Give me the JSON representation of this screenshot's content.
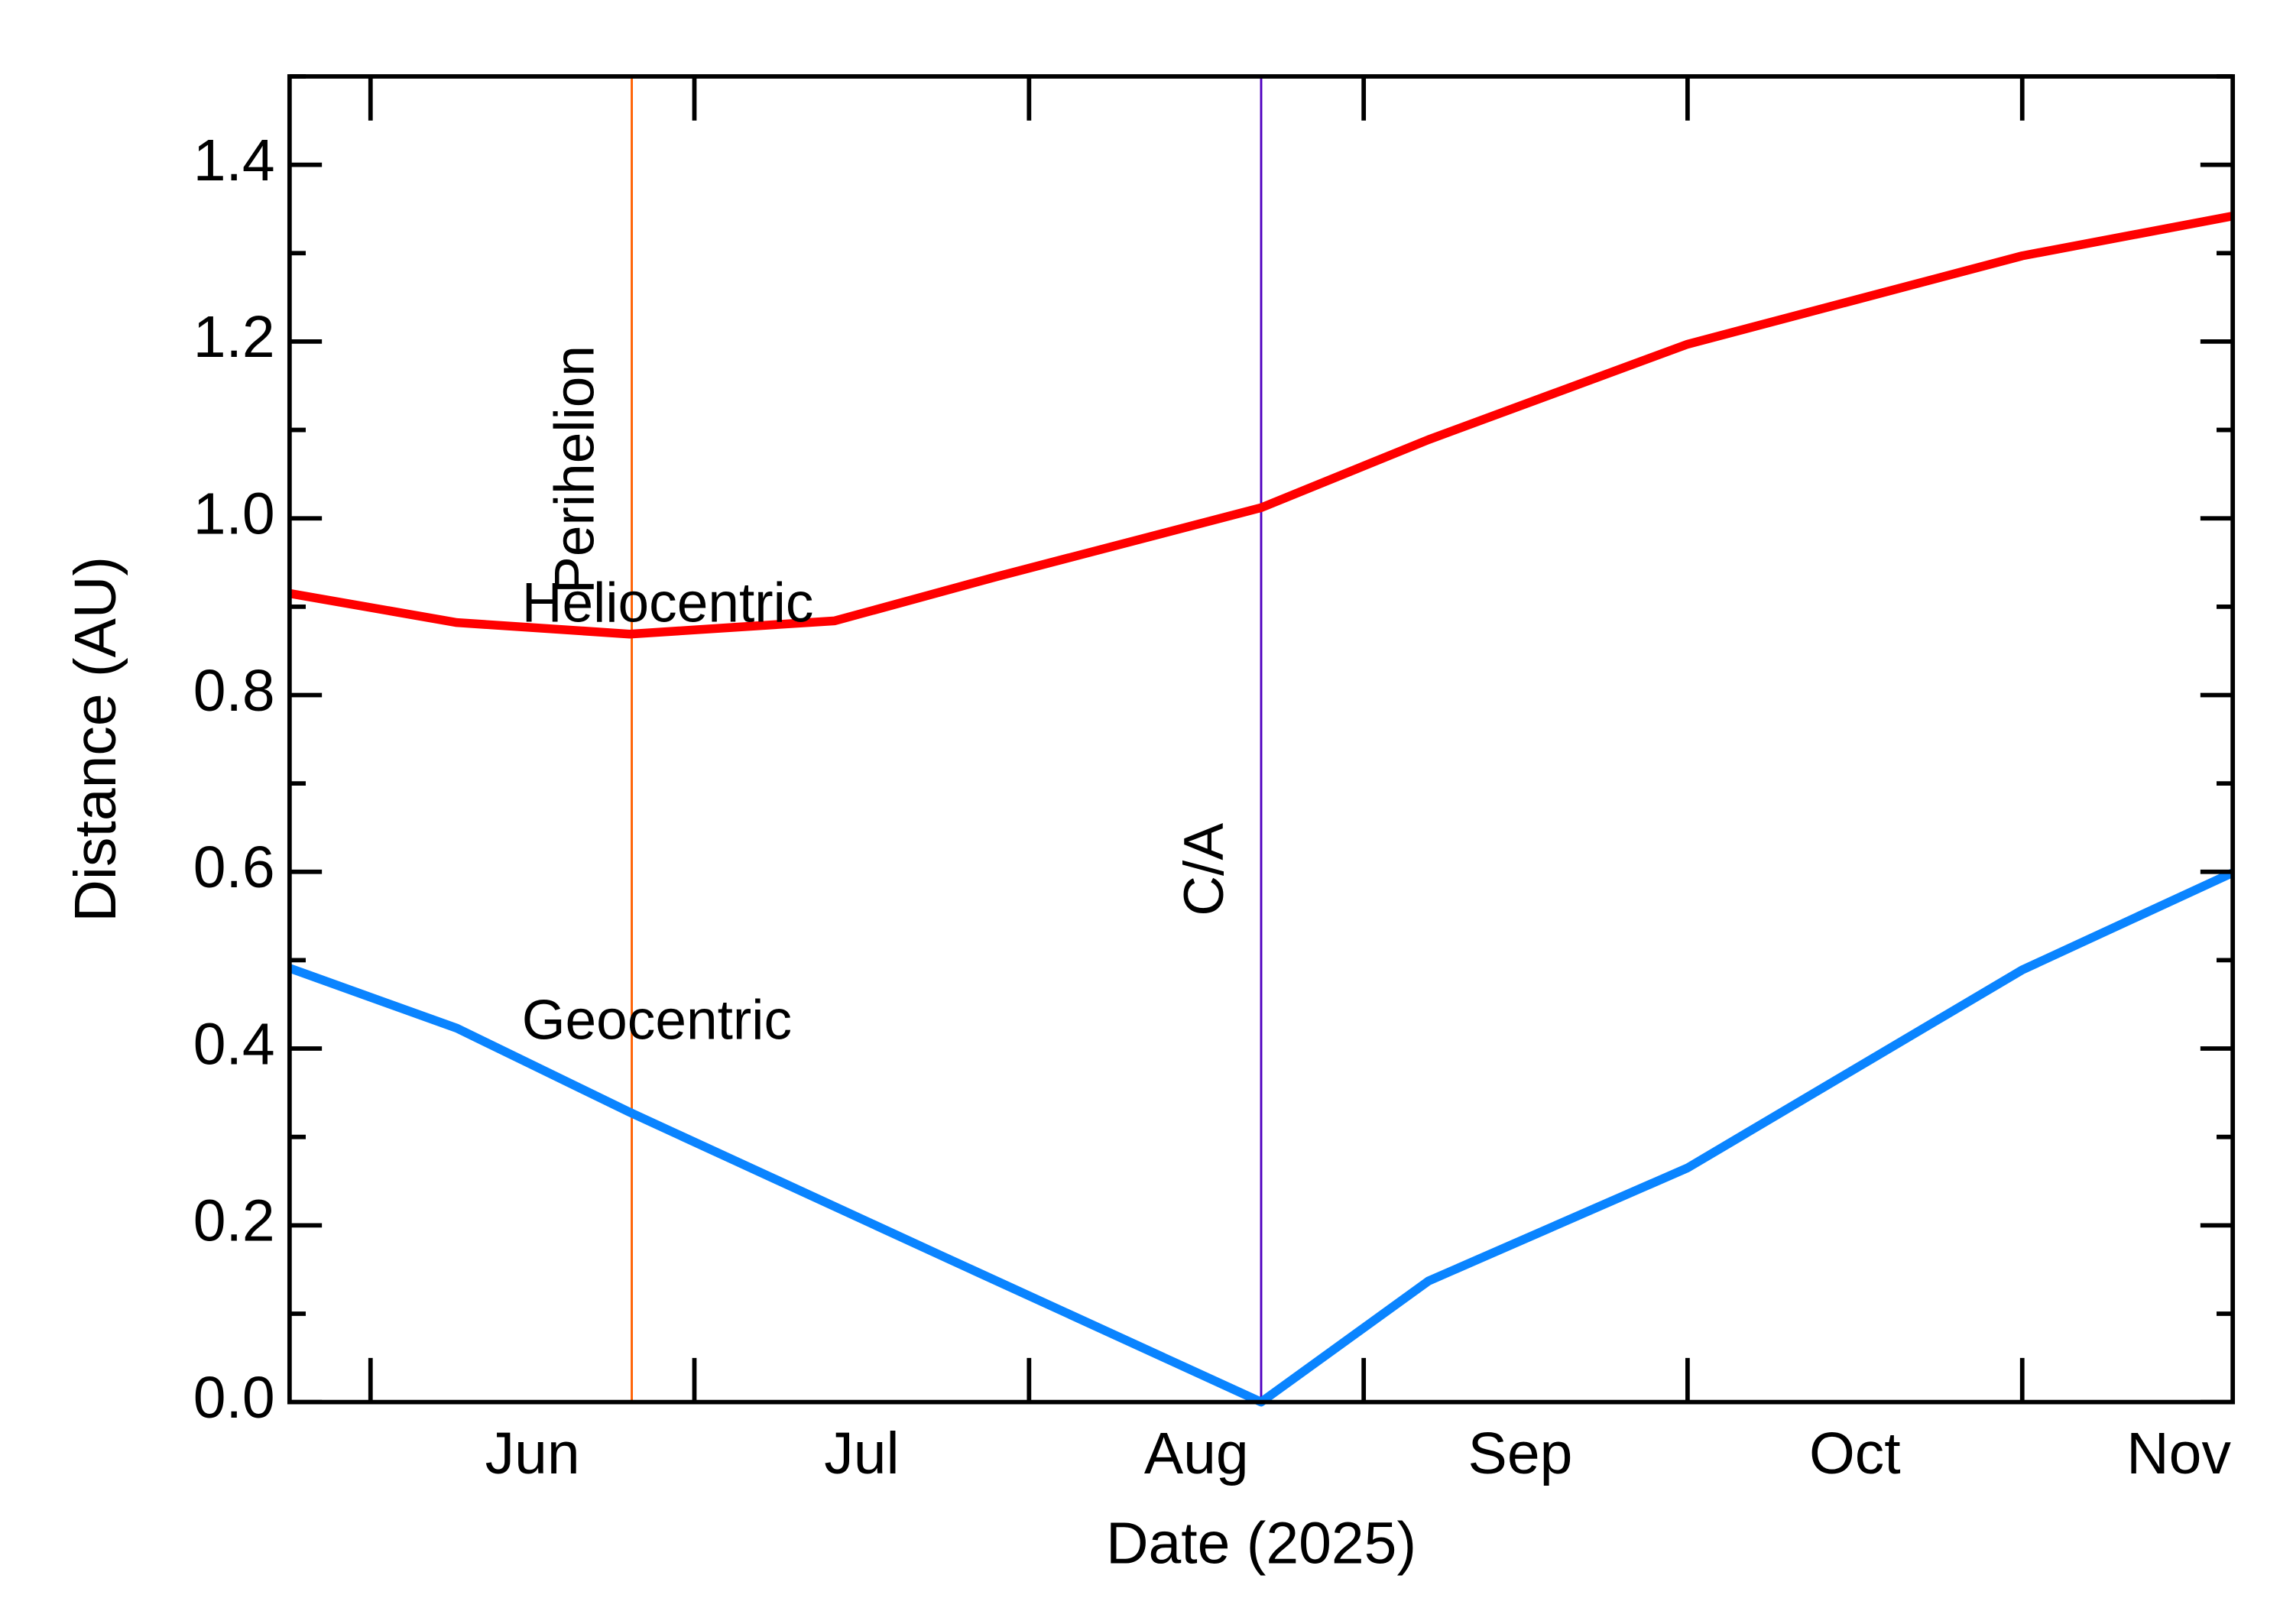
{
  "chart_data": {
    "type": "line",
    "x_label": "Date (2025)",
    "y_label": "Distance (AU)",
    "xlim": [
      144.5,
      324.5
    ],
    "xticks": [
      {
        "value": 167,
        "label": "Jun"
      },
      {
        "value": 197.5,
        "label": "Jul"
      },
      {
        "value": 228.5,
        "label": "Aug"
      },
      {
        "value": 258.5,
        "label": "Sep"
      },
      {
        "value": 289.5,
        "label": "Oct"
      },
      {
        "value": 319.5,
        "label": "Nov"
      }
    ],
    "xmajorticks": [
      152,
      182,
      213,
      244,
      274,
      305
    ],
    "ylim": [
      0,
      1.5
    ],
    "yticks": [
      {
        "value": 0,
        "label": "0.0"
      },
      0.2,
      0.4,
      0.6,
      0.8,
      {
        "value": 1,
        "label": "1.0"
      },
      1.2,
      1.4
    ],
    "yminorticks": [
      0.1,
      0.3,
      0.5,
      0.7,
      0.9,
      1.1,
      1.3,
      1.5
    ],
    "series": [
      {
        "name": "Heliocentric",
        "color": "#ff0000",
        "x": [
          144.5,
          160,
          176,
          195,
          210,
          234.5,
          250,
          274,
          305,
          324.5
        ],
        "values": [
          0.915,
          0.882,
          0.869,
          0.884,
          0.934,
          1.012,
          1.089,
          1.197,
          1.297,
          1.342
        ]
      },
      {
        "name": "Geocentric",
        "color": "#0a84ff",
        "x": [
          144.5,
          160,
          176,
          205,
          234.5,
          250,
          274,
          305,
          324.5
        ],
        "values": [
          0.491,
          0.423,
          0.328,
          0.165,
          0.0,
          0.137,
          0.265,
          0.489,
          0.599
        ]
      }
    ],
    "markers": [
      {
        "label": "Perihelion",
        "x": 176.2,
        "color": "#ff6000"
      },
      {
        "label": "C/A",
        "x": 234.5,
        "color": "#5000c0"
      }
    ]
  }
}
